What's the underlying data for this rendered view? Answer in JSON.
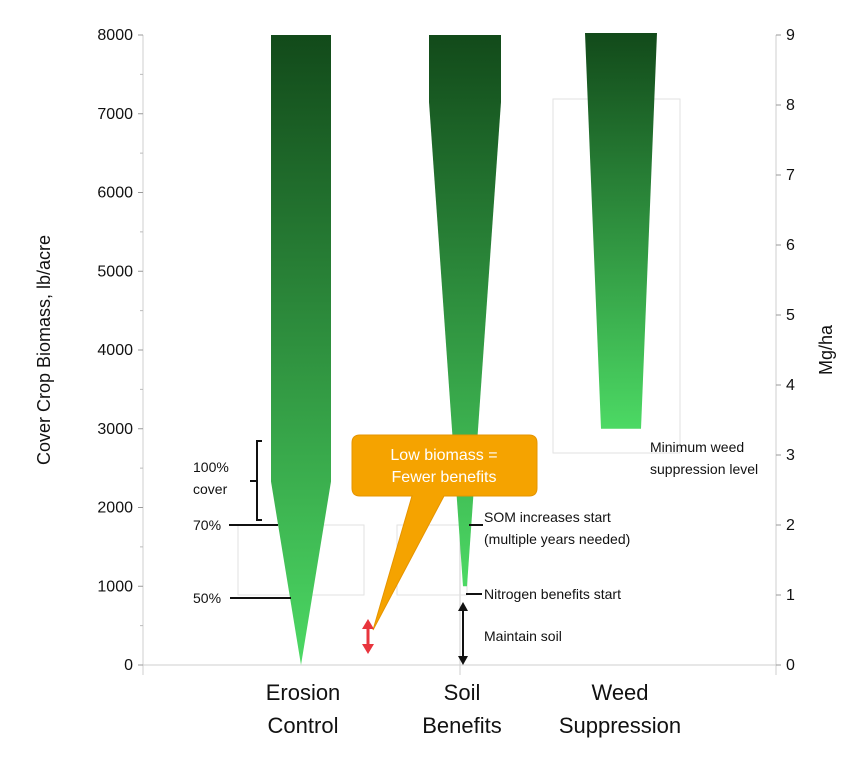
{
  "chart_data": {
    "type": "bar",
    "ylabel": "Cover Crop Biomass, lb/acre",
    "y2label": "Mg/ha",
    "ylim": [
      0,
      8000
    ],
    "y2lim": [
      0,
      9
    ],
    "yticks": [
      0,
      1000,
      2000,
      3000,
      4000,
      5000,
      6000,
      7000,
      8000
    ],
    "y2ticks": [
      0,
      1,
      2,
      3,
      4,
      5,
      6,
      7,
      8,
      9
    ],
    "categories": [
      {
        "line1": "Erosion",
        "line2": "Control"
      },
      {
        "line1": "Soil",
        "line2": "Benefits"
      },
      {
        "line1": "Weed",
        "line2": "Suppression"
      }
    ],
    "series": [
      {
        "category_index": 0,
        "min_lb_acre": 0,
        "max_lb_acre": 8000
      },
      {
        "category_index": 1,
        "min_lb_acre": 1000,
        "max_lb_acre": 8000
      },
      {
        "category_index": 2,
        "min_lb_acre": 3000,
        "max_lb_acre": 8000
      }
    ],
    "annotations": {
      "cover_100": [
        "100%",
        "cover"
      ],
      "cover_70": "70%",
      "cover_50": "50%",
      "som": [
        "SOM increases start",
        "(multiple years needed)"
      ],
      "nitrogen": "Nitrogen benefits start",
      "maintain": "Maintain soil",
      "weed_min": [
        "Minimum weed",
        "suppression level"
      ],
      "callout": [
        "Low biomass =",
        "Fewer benefits"
      ]
    },
    "colors": {
      "bar_top": "#124a1a",
      "bar_bottom": "#4cd964",
      "callout": "#f5a300",
      "arrow_red": "#e8353d"
    }
  }
}
